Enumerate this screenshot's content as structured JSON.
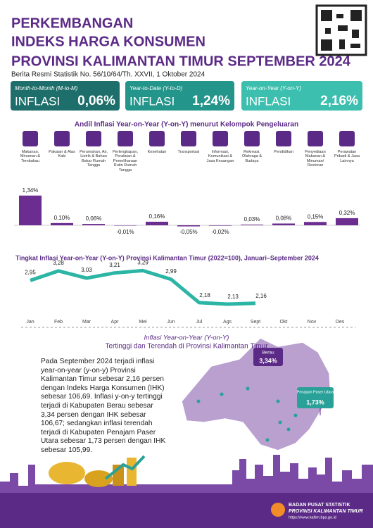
{
  "header": {
    "title_lines": [
      "PERKEMBANGAN",
      "INDEKS HARGA KONSUMEN",
      "PROVINSI KALIMANTAN TIMUR SEPTEMBER 2024"
    ],
    "subtitle": "Berita Resmi Statistik No. 56/10/64/Th. XXVII, 1 Oktober 2024"
  },
  "kpis": [
    {
      "label": "Month-to-Month (M-to-M)",
      "name": "INFLASI",
      "value": "0,06%"
    },
    {
      "label": "Year-to-Date (Y-to-D)",
      "name": "INFLASI",
      "value": "1,24%"
    },
    {
      "label": "Year-on-Year (Y-on-Y)",
      "name": "INFLASI",
      "value": "2,16%"
    }
  ],
  "chart_data": [
    {
      "type": "bar",
      "title": "Andil Inflasi Year-on-Year (Y-on-Y) menurut Kelompok Pengeluaran",
      "categories": [
        "Makanan, Minuman & Tembakau",
        "Pakaian & Alas Kaki",
        "Perumahan, Air, Listrik & Bahan Bakar Rumah Tangga",
        "Perlengkapan, Peralatan & Pemeliharaan Rutin Rumah Tangga",
        "Kesehatan",
        "Transportasi",
        "Informasi, Komunikasi & Jasa Keuangan",
        "Rekreasi, Olahraga & Budaya",
        "Pendidikan",
        "Penyediaan Makanan & Minuman/ Restoran",
        "Perawatan Pribadi & Jasa Lainnya"
      ],
      "values": [
        1.34,
        0.1,
        0.06,
        -0.01,
        0.16,
        -0.05,
        -0.02,
        0.03,
        0.08,
        0.15,
        0.32
      ],
      "value_labels": [
        "1,34%",
        "0,10%",
        "0,06%",
        "-0,01%",
        "0,16%",
        "-0,05%",
        "-0,02%",
        "0,03%",
        "0,08%",
        "0,15%",
        "0,32%"
      ],
      "color": "#6b2d8f"
    },
    {
      "type": "line",
      "title": "Tingkat Inflasi Year-on-Year (Y-on-Y) Provinsi Kalimantan Timur (2022=100), Januari–September 2024",
      "categories": [
        "Jan",
        "Feb",
        "Mar",
        "Apr",
        "Mei",
        "Jun",
        "Jul",
        "Ags",
        "Sept",
        "Okt",
        "Nov",
        "Des"
      ],
      "values": [
        2.95,
        3.28,
        3.03,
        3.21,
        3.29,
        2.99,
        2.18,
        2.13,
        2.16,
        null,
        null,
        null
      ],
      "value_labels": [
        "2,95",
        "3,28",
        "3,03",
        "3,21",
        "3,29",
        "2,99",
        "2,18",
        "2,13",
        "2,16",
        null,
        null,
        null
      ],
      "color": "#2cb5a5"
    }
  ],
  "map": {
    "title_lines": [
      "Inflasi Year-on-Year (Y-on-Y)",
      "Tertinggi dan Terendah di Provinsi Kalimantan Timur"
    ],
    "paragraph": "Pada September 2024 terjadi inflasi year-on-year (y-on-y) Provinsi Kalimantan Timur sebesar 2,16 persen dengan Indeks Harga Konsumen (IHK) sebesar 106,69. Inflasi y-on-y tertinggi terjadi di Kabupaten Berau sebesar 3,34 persen dengan IHK sebesar 106,67; sedangkan inflasi terendah terjadi di Kabupaten Penajam Paser Utara sebesar 1,73 persen dengan IHK sebesar 105,99.",
    "callouts": [
      {
        "name": "Berau",
        "value": "3,34%"
      },
      {
        "name": "Penajam Paser Utara",
        "value": "1,73%"
      }
    ]
  },
  "footer": {
    "org": "BADAN PUSAT STATISTIK",
    "region": "PROVINSI KALIMANTAN TIMUR",
    "url": "https://www.kaltim.bps.go.id"
  }
}
